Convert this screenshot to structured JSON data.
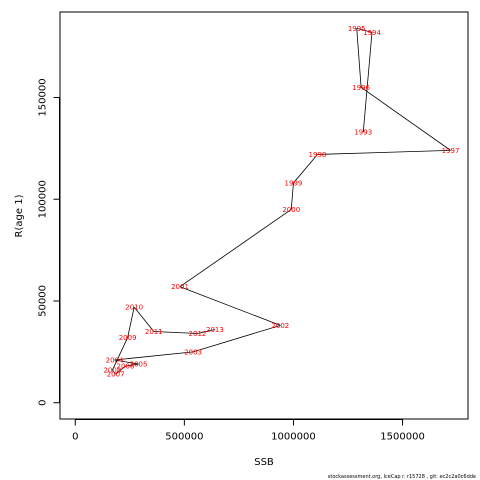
{
  "chart_data": {
    "type": "line",
    "title": "",
    "xlabel": "SSB",
    "ylabel": "R(age 1)",
    "xlim": [
      -70000,
      1800000
    ],
    "ylim": [
      -8000,
      192000
    ],
    "x_ticks": [
      0,
      500000,
      1000000,
      1500000
    ],
    "x_tick_labels": [
      "0",
      "500000",
      "1000000",
      "1500000"
    ],
    "y_ticks": [
      0,
      50000,
      100000,
      150000
    ],
    "y_tick_labels": [
      "0",
      "50000",
      "100000",
      "150000"
    ],
    "grid": false,
    "line_color": "#000000",
    "label_color": "#ff0000",
    "points": [
      {
        "year": "1993",
        "x": 1320000,
        "y": 133000
      },
      {
        "year": "1994",
        "x": 1360000,
        "y": 182000
      },
      {
        "year": "1995",
        "x": 1290000,
        "y": 184000
      },
      {
        "year": "1996",
        "x": 1310000,
        "y": 155000
      },
      {
        "year": "1997",
        "x": 1720000,
        "y": 124000
      },
      {
        "year": "1998",
        "x": 1110000,
        "y": 122000
      },
      {
        "year": "1999",
        "x": 1000000,
        "y": 108000
      },
      {
        "year": "2000",
        "x": 990000,
        "y": 95000
      },
      {
        "year": "2001",
        "x": 480000,
        "y": 57000
      },
      {
        "year": "2002",
        "x": 940000,
        "y": 38000
      },
      {
        "year": "2003",
        "x": 540000,
        "y": 25000
      },
      {
        "year": "2004",
        "x": 180000,
        "y": 21000
      },
      {
        "year": "2005",
        "x": 290000,
        "y": 19000
      },
      {
        "year": "2006",
        "x": 230000,
        "y": 18000
      },
      {
        "year": "2007",
        "x": 185000,
        "y": 14000
      },
      {
        "year": "2008",
        "x": 170000,
        "y": 16000
      },
      {
        "year": "2009",
        "x": 240000,
        "y": 32000
      },
      {
        "year": "2010",
        "x": 270000,
        "y": 47000
      },
      {
        "year": "2011",
        "x": 360000,
        "y": 35000
      },
      {
        "year": "2012",
        "x": 560000,
        "y": 34000
      },
      {
        "year": "2013",
        "x": 640000,
        "y": 36000
      }
    ]
  },
  "footer": "stockassessment.org, IceCap r. r15728 , git: ec2c2a0c6dde"
}
